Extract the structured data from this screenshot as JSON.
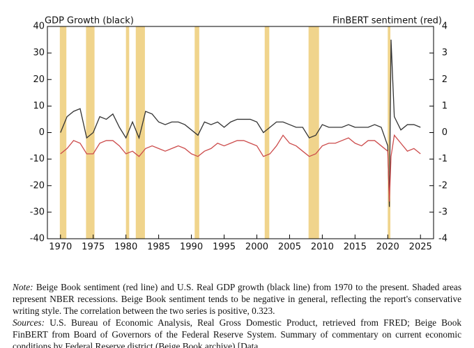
{
  "chart_data": {
    "type": "line",
    "title_left": "GDP Growth (black)",
    "title_right": "FinBERT sentiment (red)",
    "x": [
      1970,
      1971,
      1972,
      1973,
      1974,
      1975,
      1976,
      1977,
      1978,
      1979,
      1980,
      1981,
      1982,
      1983,
      1984,
      1985,
      1986,
      1987,
      1988,
      1989,
      1990,
      1991,
      1992,
      1993,
      1994,
      1995,
      1996,
      1997,
      1998,
      1999,
      2000,
      2001,
      2002,
      2003,
      2004,
      2005,
      2006,
      2007,
      2008,
      2009,
      2010,
      2011,
      2012,
      2013,
      2014,
      2015,
      2016,
      2017,
      2018,
      2019,
      2020,
      2020.25,
      2020.5,
      2021,
      2022,
      2023,
      2024,
      2025
    ],
    "series": [
      {
        "name": "GDP Growth",
        "color": "#333333",
        "values": [
          0,
          6,
          8,
          9,
          -2,
          0,
          6,
          5,
          7,
          2,
          -2,
          4,
          -2,
          8,
          7,
          4,
          3,
          4,
          4,
          3,
          1,
          -1,
          4,
          3,
          4,
          2,
          4,
          5,
          5,
          5,
          4,
          0,
          2,
          4,
          4,
          3,
          2,
          2,
          -2,
          -1,
          3,
          2,
          2,
          2,
          3,
          2,
          2,
          2,
          3,
          2,
          -5,
          -28,
          35,
          6,
          1,
          3,
          3,
          2
        ]
      },
      {
        "name": "FinBERT sentiment",
        "color": "#cc4b4b",
        "axis": "y2",
        "values": [
          -0.8,
          -0.6,
          -0.3,
          -0.4,
          -0.8,
          -0.8,
          -0.4,
          -0.3,
          -0.3,
          -0.5,
          -0.8,
          -0.7,
          -0.9,
          -0.6,
          -0.5,
          -0.6,
          -0.7,
          -0.6,
          -0.5,
          -0.6,
          -0.8,
          -0.9,
          -0.7,
          -0.6,
          -0.4,
          -0.5,
          -0.4,
          -0.3,
          -0.3,
          -0.4,
          -0.5,
          -0.9,
          -0.8,
          -0.5,
          -0.1,
          -0.4,
          -0.5,
          -0.7,
          -0.9,
          -0.8,
          -0.5,
          -0.4,
          -0.4,
          -0.3,
          -0.2,
          -0.4,
          -0.5,
          -0.3,
          -0.3,
          -0.5,
          -0.7,
          -2.6,
          -0.9,
          -0.1,
          -0.4,
          -0.7,
          -0.6,
          -0.8
        ]
      }
    ],
    "recessions": [
      [
        1969.9,
        1970.9
      ],
      [
        1973.9,
        1975.2
      ],
      [
        1980.0,
        1980.5
      ],
      [
        1981.5,
        1982.9
      ],
      [
        1990.5,
        1991.2
      ],
      [
        2001.2,
        2001.9
      ],
      [
        2007.9,
        2009.5
      ],
      [
        2020.0,
        2020.4
      ]
    ],
    "recession_color": "#f0d48c",
    "xlim": [
      1968,
      2027
    ],
    "xticks": [
      1970,
      1975,
      1980,
      1985,
      1990,
      1995,
      2000,
      2005,
      2010,
      2015,
      2020,
      2025
    ],
    "ylim": [
      -40,
      40
    ],
    "yticks": [
      -40,
      -30,
      -20,
      -10,
      0,
      10,
      20,
      30,
      40
    ],
    "y2lim": [
      -4,
      4
    ],
    "y2ticks": [
      -4,
      -3,
      -2,
      -1,
      0,
      1,
      2,
      3,
      4
    ]
  },
  "caption": {
    "note_label": "Note:",
    "note_text": "Beige Book sentiment (red line) and U.S. Real GDP growth (black line) from 1970 to the present. Shaded areas represent NBER recessions. Beige Book sentiment tends to be negative in general, reflecting the report's conservative writing style. The correlation between the two series is positive, 0.323.",
    "sources_label": "Sources:",
    "sources_text": "U.S. Bureau of Economic Analysis, Real Gross Domestic Product, retrieved from FRED; Beige Book FinBERT from Board of Governors of the Federal Reserve System. Summary of commentary on current economic conditions by Federal Reserve district (Beige Book archive) [Data"
  }
}
